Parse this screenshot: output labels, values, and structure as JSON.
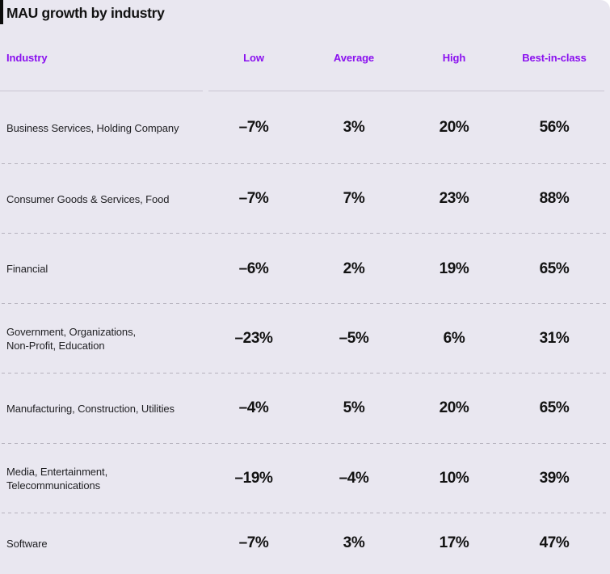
{
  "page": {
    "title": "MAU growth by industry",
    "background_color": "#e9e7f0",
    "accent_color": "#8a10ef"
  },
  "table": {
    "columns": {
      "industry": "Industry",
      "low": "Low",
      "average": "Average",
      "high": "High",
      "best": "Best-in-class"
    },
    "rows": [
      {
        "label": "Business Services, Holding Company",
        "values": [
          "–7%",
          "3%",
          "20%",
          "56%"
        ]
      },
      {
        "label": "Consumer Goods & Services, Food",
        "values": [
          "–7%",
          "7%",
          "23%",
          "88%"
        ]
      },
      {
        "label": "Financial",
        "values": [
          "–6%",
          "2%",
          "19%",
          "65%"
        ]
      },
      {
        "label": "Government, Organizations,\nNon-Profit, Education",
        "values": [
          "–23%",
          "–5%",
          "6%",
          "31%"
        ]
      },
      {
        "label": "Manufacturing, Construction, Utilities",
        "values": [
          "–4%",
          "5%",
          "20%",
          "65%"
        ]
      },
      {
        "label": "Media, Entertainment,\nTelecommunications",
        "values": [
          "–19%",
          "–4%",
          "10%",
          "39%"
        ]
      },
      {
        "label": "Software",
        "values": [
          "–7%",
          "3%",
          "17%",
          "47%"
        ]
      }
    ]
  },
  "chart_data": {
    "type": "table",
    "title": "MAU growth by industry",
    "columns": [
      "Industry",
      "Low",
      "Average",
      "High",
      "Best-in-class"
    ],
    "unit": "%",
    "rows": [
      {
        "industry": "Business Services, Holding Company",
        "low": -7,
        "average": 3,
        "high": 20,
        "best_in_class": 56
      },
      {
        "industry": "Consumer Goods & Services, Food",
        "low": -7,
        "average": 7,
        "high": 23,
        "best_in_class": 88
      },
      {
        "industry": "Financial",
        "low": -6,
        "average": 2,
        "high": 19,
        "best_in_class": 65
      },
      {
        "industry": "Government, Organizations, Non-Profit, Education",
        "low": -23,
        "average": -5,
        "high": 6,
        "best_in_class": 31
      },
      {
        "industry": "Manufacturing, Construction, Utilities",
        "low": -4,
        "average": 5,
        "high": 20,
        "best_in_class": 65
      },
      {
        "industry": "Media, Entertainment, Telecommunications",
        "low": -19,
        "average": -4,
        "high": 10,
        "best_in_class": 39
      },
      {
        "industry": "Software",
        "low": -7,
        "average": 3,
        "high": 17,
        "best_in_class": 47
      }
    ]
  }
}
